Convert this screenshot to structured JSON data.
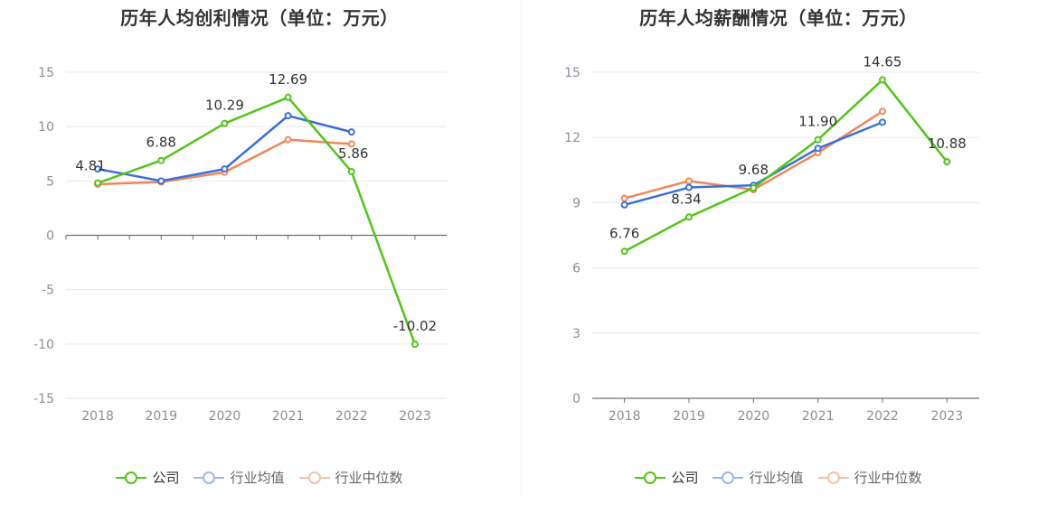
{
  "chart_data": [
    {
      "type": "line",
      "title": "历年人均创利情况（单位：万元）",
      "categories": [
        "2018",
        "2019",
        "2020",
        "2021",
        "2022",
        "2023"
      ],
      "yticks": [
        "15",
        "10",
        "5",
        "0",
        "-5",
        "-10",
        "-15"
      ],
      "ylim": [
        -15,
        15
      ],
      "grid": true,
      "legend_position": "bottom",
      "series": [
        {
          "name": "公司",
          "color": "#52c41a",
          "values": [
            4.81,
            6.88,
            10.29,
            12.69,
            5.86,
            -10.02
          ],
          "labels": [
            "4.81",
            "6.88",
            "10.29",
            "12.69",
            "5.86",
            "-10.02"
          ]
        },
        {
          "name": "行业均值",
          "color": "#3b6fd8",
          "values": [
            6.1,
            5.0,
            6.1,
            11.0,
            9.5,
            null
          ]
        },
        {
          "name": "行业中位数",
          "color": "#f0865a",
          "values": [
            4.7,
            4.9,
            5.8,
            8.8,
            8.4,
            null
          ]
        }
      ]
    },
    {
      "type": "line",
      "title": "历年人均薪酬情况（单位：万元）",
      "categories": [
        "2018",
        "2019",
        "2020",
        "2021",
        "2022",
        "2023"
      ],
      "yticks": [
        "15",
        "12",
        "9",
        "6",
        "3",
        "0"
      ],
      "ylim": [
        0,
        15
      ],
      "grid": true,
      "legend_position": "bottom",
      "series": [
        {
          "name": "公司",
          "color": "#52c41a",
          "values": [
            6.76,
            8.34,
            9.68,
            11.9,
            14.65,
            10.88
          ],
          "labels": [
            "6.76",
            "8.34",
            "9.68",
            "11.90",
            "14.65",
            "10.88"
          ]
        },
        {
          "name": "行业均值",
          "color": "#3b6fd8",
          "values": [
            8.9,
            9.7,
            9.8,
            11.5,
            12.7,
            null
          ]
        },
        {
          "name": "行业中位数",
          "color": "#f0865a",
          "values": [
            9.2,
            10.0,
            9.6,
            11.3,
            13.2,
            null
          ]
        }
      ]
    }
  ],
  "legend_items": [
    "公司",
    "行业均值",
    "行业中位数"
  ]
}
